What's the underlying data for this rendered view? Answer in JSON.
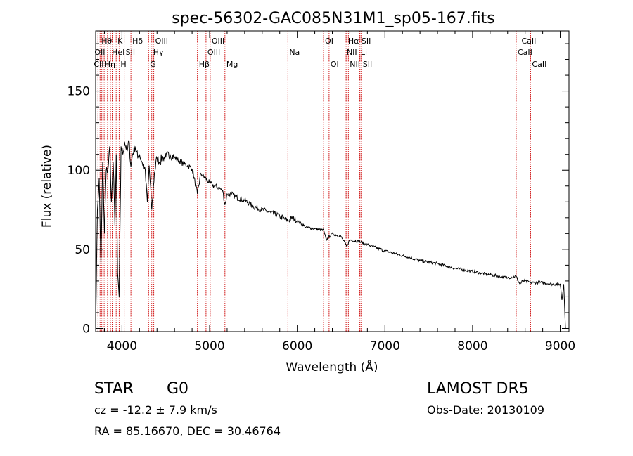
{
  "chart_data": {
    "type": "line",
    "title": "spec-56302-GAC085N31M1_sp05-167.fits",
    "xlabel": "Wavelength (Å)",
    "ylabel": "Flux (relative)",
    "xlim": [
      3700,
      9100
    ],
    "ylim": [
      -2,
      188
    ],
    "xticks": [
      4000,
      5000,
      6000,
      7000,
      8000,
      9000
    ],
    "yticks": [
      0,
      50,
      100,
      150
    ],
    "grid": false,
    "series": [
      {
        "color": "#000000",
        "x": [
          3700,
          3720,
          3740,
          3760,
          3780,
          3800,
          3820,
          3840,
          3860,
          3880,
          3900,
          3920,
          3935,
          3950,
          3968,
          3990,
          4010,
          4030,
          4060,
          4080,
          4102,
          4120,
          4150,
          4180,
          4200,
          4230,
          4260,
          4290,
          4310,
          4340,
          4370,
          4400,
          4430,
          4460,
          4500,
          4550,
          4600,
          4650,
          4700,
          4750,
          4800,
          4861,
          4900,
          4950,
          5000,
          5050,
          5100,
          5150,
          5175,
          5200,
          5250,
          5300,
          5400,
          5500,
          5600,
          5700,
          5800,
          5893,
          5950,
          6000,
          6100,
          6200,
          6300,
          6330,
          6400,
          6500,
          6563,
          6600,
          6700,
          6800,
          7000,
          7200,
          7400,
          7600,
          7800,
          8000,
          8200,
          8400,
          8498,
          8520,
          8542,
          8570,
          8600,
          8662,
          8700,
          8800,
          8900,
          9000,
          9020,
          9040,
          9060
        ],
        "y": [
          0,
          75,
          95,
          40,
          105,
          60,
          100,
          100,
          115,
          80,
          105,
          65,
          110,
          35,
          20,
          115,
          110,
          118,
          112,
          119,
          102,
          110,
          115,
          108,
          110,
          105,
          102,
          80,
          103,
          75,
          98,
          108,
          105,
          108,
          108,
          110,
          108,
          106,
          104,
          103,
          101,
          85,
          98,
          95,
          92,
          90,
          89,
          87,
          78,
          85,
          85,
          83,
          81,
          77,
          75,
          73,
          71,
          68,
          70,
          68,
          64,
          63,
          62,
          56,
          60,
          58,
          52,
          56,
          55,
          53,
          49,
          46,
          43,
          41,
          38,
          36,
          34,
          32,
          33,
          30,
          28,
          30,
          30,
          29,
          29,
          29,
          28,
          28,
          18,
          28,
          0
        ]
      }
    ],
    "lines": [
      {
        "wl": 3727,
        "row": 3,
        "label": "CII",
        "label_dx": -8
      },
      {
        "wl": 3727,
        "row": 2,
        "label": "OII",
        "label_dx": -7
      },
      {
        "wl": 3750,
        "row": 1,
        "label": "Hθ",
        "label_dx": 0
      },
      {
        "wl": 3770,
        "row": 3,
        "label": "Hη",
        "label_dx": 2
      },
      {
        "wl": 3797,
        "row": 1,
        "label": "",
        "label_dx": 0
      },
      {
        "wl": 3835,
        "row": 1,
        "label": "",
        "label_dx": 0
      },
      {
        "wl": 3869,
        "row": 2,
        "label": "HeI",
        "label_dx": 0
      },
      {
        "wl": 3889,
        "row": 1,
        "label": "",
        "label_dx": 0
      },
      {
        "wl": 3934,
        "row": 1,
        "label": "K",
        "label_dx": 0
      },
      {
        "wl": 3968,
        "row": 3,
        "label": "H",
        "label_dx": 0
      },
      {
        "wl": 4026,
        "row": 2,
        "label": "SII",
        "label_dx": 0
      },
      {
        "wl": 4102,
        "row": 1,
        "label": "Hδ",
        "label_dx": 0
      },
      {
        "wl": 4304,
        "row": 3,
        "label": "G",
        "label_dx": 0
      },
      {
        "wl": 4340,
        "row": 2,
        "label": "Hγ",
        "label_dx": 0
      },
      {
        "wl": 4363,
        "row": 1,
        "label": "OIII",
        "label_dx": 0
      },
      {
        "wl": 4861,
        "row": 3,
        "label": "Hβ",
        "label_dx": 0
      },
      {
        "wl": 4959,
        "row": 2,
        "label": "OIII",
        "label_dx": 0
      },
      {
        "wl": 5007,
        "row": 1,
        "label": "OIII",
        "label_dx": 0
      },
      {
        "wl": 5175,
        "row": 3,
        "label": "Mg",
        "label_dx": 0
      },
      {
        "wl": 5893,
        "row": 2,
        "label": "Na",
        "label_dx": 0
      },
      {
        "wl": 6300,
        "row": 1,
        "label": "OI",
        "label_dx": 0
      },
      {
        "wl": 6363,
        "row": 3,
        "label": "OI",
        "label_dx": 0
      },
      {
        "wl": 6548,
        "row": 2,
        "label": "NII",
        "label_dx": 0
      },
      {
        "wl": 6563,
        "row": 1,
        "label": "Hα",
        "label_dx": 0
      },
      {
        "wl": 6583,
        "row": 3,
        "label": "NII",
        "label_dx": 0
      },
      {
        "wl": 6708,
        "row": 2,
        "label": "Li",
        "label_dx": 0
      },
      {
        "wl": 6716,
        "row": 1,
        "label": "SII",
        "label_dx": 0
      },
      {
        "wl": 6731,
        "row": 3,
        "label": "SII",
        "label_dx": 0
      },
      {
        "wl": 8498,
        "row": 2,
        "label": "CaII",
        "label_dx": 0
      },
      {
        "wl": 8542,
        "row": 1,
        "label": "CaII",
        "label_dx": 0
      },
      {
        "wl": 8662,
        "row": 3,
        "label": "CaII",
        "label_dx": 0
      }
    ]
  },
  "info": {
    "class": "STAR",
    "subclass": "G0",
    "survey": "LAMOST DR5",
    "cz": "cz = -12.2 ± 7.9 km/s",
    "obs_date": "Obs-Date: 20130109",
    "coords": "RA =  85.16670, DEC =  30.46764"
  },
  "colors": {
    "spectrum": "#000000",
    "line_marker": "#cc0000"
  }
}
